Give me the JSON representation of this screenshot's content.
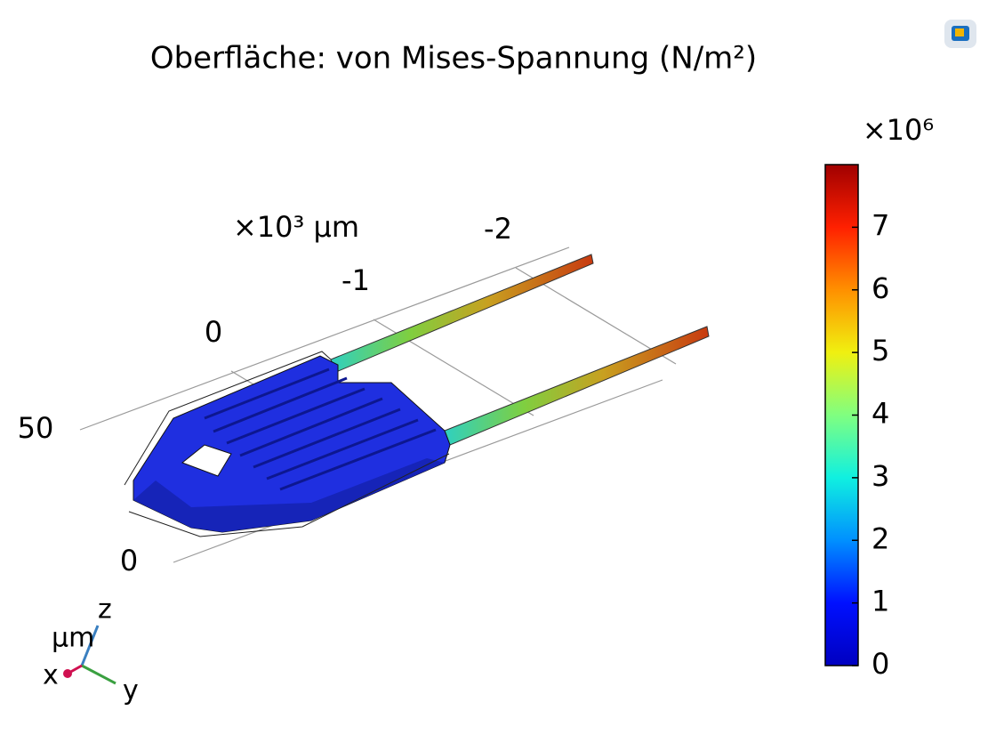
{
  "chart_data": {
    "type": "surface3d",
    "title": "Oberfläche: von Mises-Spannung (N/m²)",
    "colorbar": {
      "label": "×10⁶",
      "lim": [
        0,
        8
      ],
      "ticks": [
        0,
        1,
        2,
        3,
        4,
        5,
        6,
        7
      ],
      "colormap": "jet"
    },
    "y_axis": {
      "label": "×10³ μm",
      "ticks": [
        0,
        -1,
        -2
      ]
    },
    "z_axis": {
      "ticks": [
        50,
        0
      ]
    },
    "triad": {
      "unit": "μm",
      "x": "x",
      "y": "y",
      "z": "z"
    }
  }
}
